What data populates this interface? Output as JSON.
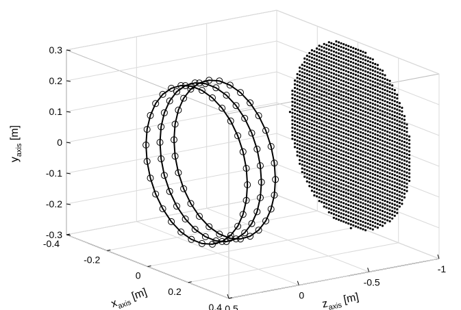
{
  "chart_data": {
    "type": "scatter3d",
    "title": "",
    "xlabel": {
      "main": "x",
      "sub": "axis",
      "unit": " [m]"
    },
    "ylabel": {
      "main": "y",
      "sub": "axis",
      "unit": " [m]"
    },
    "zlabel": {
      "main": "z",
      "sub": "axis",
      "unit": " [m]"
    },
    "xlim": [
      -0.4,
      0.4
    ],
    "ylim": [
      -0.3,
      0.3
    ],
    "zlim": [
      -1,
      0.5
    ],
    "x_ticks": [
      "-0.4",
      "-0.2",
      "0",
      "0.2",
      "0.4"
    ],
    "x_tick_values": [
      -0.4,
      -0.2,
      0,
      0.2,
      0.4
    ],
    "y_ticks": [
      "-0.3",
      "-0.2",
      "-0.1",
      "0",
      "0.1",
      "0.2",
      "0.3"
    ],
    "y_tick_values": [
      -0.3,
      -0.2,
      -0.1,
      0,
      0.1,
      0.2,
      0.3
    ],
    "z_ticks": [
      "-1",
      "-0.5",
      "0",
      "0.5"
    ],
    "z_tick_values": [
      -1,
      -0.5,
      0,
      0.5
    ],
    "grid": true,
    "series": [
      {
        "type": "circle-rings",
        "color": "#000000",
        "marker": "open-circle",
        "center": {
          "x": 0,
          "y": 0
        },
        "radius": 0.25,
        "points_per_ring": 30,
        "z": [
          0.15,
          0.05,
          -0.05
        ]
      },
      {
        "type": "dot-disk",
        "color": "#000000",
        "marker": "dot",
        "center": {
          "x": 0,
          "y": 0
        },
        "radius": 0.3,
        "spacing": 0.012,
        "z": -0.95
      }
    ]
  }
}
